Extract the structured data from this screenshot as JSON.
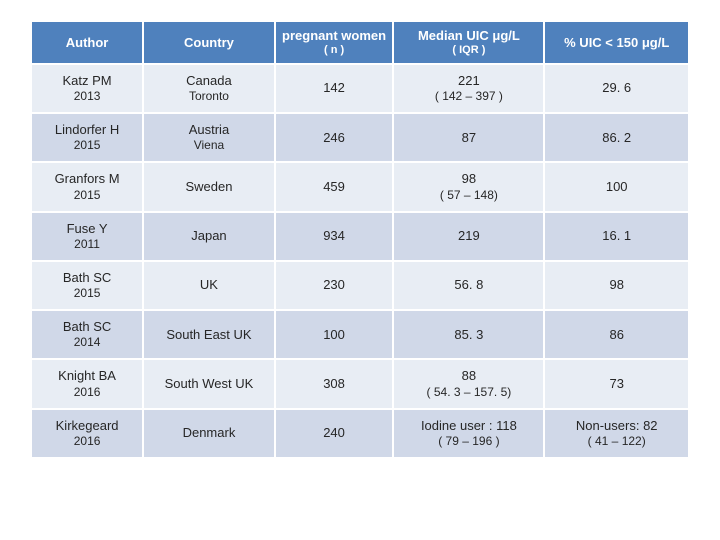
{
  "table": {
    "columns": [
      {
        "main": "Author",
        "sub": ""
      },
      {
        "main": "Country",
        "sub": ""
      },
      {
        "main": "pregnant women",
        "sub": "( n )"
      },
      {
        "main": "Median UIC  μg/L",
        "sub": "( IQR )"
      },
      {
        "main": "% UIC < 150 μg/L",
        "sub": ""
      }
    ],
    "rows": [
      {
        "author_main": "Katz  PM",
        "author_sub": "2013",
        "country_main": "Canada",
        "country_sub": "Toronto",
        "n": "142",
        "median_main": "221",
        "median_sub": "( 142 – 397 )",
        "pct_main": "29. 6",
        "pct_sub": ""
      },
      {
        "author_main": "Lindorfer H",
        "author_sub": "2015",
        "country_main": "Austria",
        "country_sub": "Viena",
        "n": "246",
        "median_main": "87",
        "median_sub": "",
        "pct_main": "86. 2",
        "pct_sub": ""
      },
      {
        "author_main": "Granfors M",
        "author_sub": "2015",
        "country_main": "Sweden",
        "country_sub": "",
        "n": "459",
        "median_main": "98",
        "median_sub": "( 57 – 148)",
        "pct_main": "100",
        "pct_sub": ""
      },
      {
        "author_main": "Fuse Y",
        "author_sub": "2011",
        "country_main": "Japan",
        "country_sub": "",
        "n": "934",
        "median_main": "219",
        "median_sub": "",
        "pct_main": "16. 1",
        "pct_sub": ""
      },
      {
        "author_main": "Bath SC",
        "author_sub": "2015",
        "country_main": "UK",
        "country_sub": "",
        "n": "230",
        "median_main": "56. 8",
        "median_sub": "",
        "pct_main": "98",
        "pct_sub": ""
      },
      {
        "author_main": "Bath SC",
        "author_sub": "2014",
        "country_main": "South East UK",
        "country_sub": "",
        "n": "100",
        "median_main": "85. 3",
        "median_sub": "",
        "pct_main": "86",
        "pct_sub": ""
      },
      {
        "author_main": "Knight BA",
        "author_sub": "2016",
        "country_main": "South West UK",
        "country_sub": "",
        "n": "308",
        "median_main": "88",
        "median_sub": "( 54. 3 – 157. 5)",
        "pct_main": "73",
        "pct_sub": ""
      },
      {
        "author_main": "Kirkegeard",
        "author_sub": "2016",
        "country_main": "Denmark",
        "country_sub": "",
        "n": "240",
        "median_main": "Iodine user : 118",
        "median_sub": "( 79 – 196 )",
        "pct_main": "Non-users: 82",
        "pct_sub": "( 41 – 122)"
      }
    ]
  },
  "style": {
    "header_bg": "#4f81bd",
    "header_text": "#ffffff",
    "row_odd_bg": "#e8edf4",
    "row_even_bg": "#d0d8e8",
    "text_color": "#262626",
    "font_family": "Arial",
    "header_fontsize": 13,
    "cell_fontsize": 13
  }
}
